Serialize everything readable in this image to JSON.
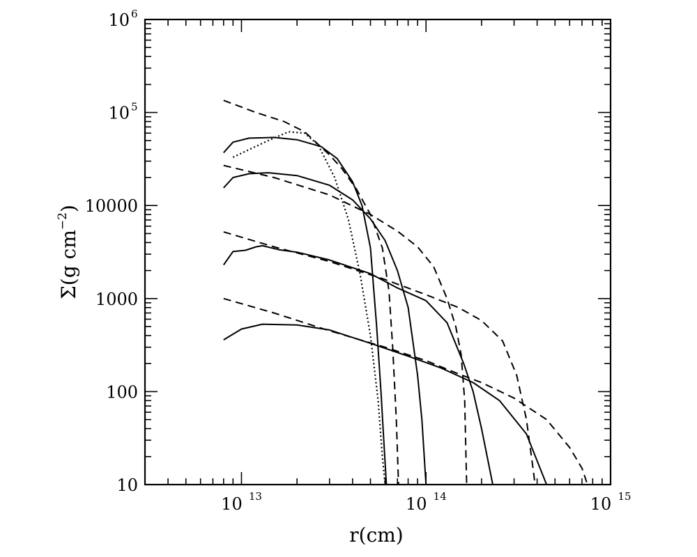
{
  "chart_data": {
    "type": "line",
    "title": "",
    "x_axis": {
      "label": "r(cm)",
      "scale": "log",
      "range": [
        3000000000000.0,
        1000000000000000.0
      ],
      "tick_values": [
        10000000000000.0,
        100000000000000.0,
        1000000000000000.0
      ],
      "tick_base": "10",
      "tick_exps": [
        "13",
        "14",
        "15"
      ]
    },
    "y_axis": {
      "label_main": "Σ(g cm",
      "label_sup": "−2",
      "label_close": ")",
      "scale": "log",
      "range": [
        10,
        1000000.0
      ],
      "ticks": [
        {
          "value": 10,
          "label": "10"
        },
        {
          "value": 100,
          "label": "100"
        },
        {
          "value": 1000,
          "label": "1000"
        },
        {
          "value": 10000,
          "label": "10000"
        },
        {
          "value": 100000,
          "label": "10",
          "exp": "5"
        },
        {
          "value": 1000000,
          "label": "10",
          "exp": "6"
        }
      ]
    },
    "grid": false,
    "legend": "none",
    "series": [
      {
        "style": "solid",
        "points": [
          [
            8000000000000.0,
            37000
          ],
          [
            9000000000000.0,
            48000
          ],
          [
            11000000000000.0,
            53000
          ],
          [
            15000000000000.0,
            54000
          ],
          [
            20000000000000.0,
            51000
          ],
          [
            27000000000000.0,
            43000
          ],
          [
            33000000000000.0,
            32000
          ],
          [
            40000000000000.0,
            18000
          ],
          [
            45000000000000.0,
            10000
          ],
          [
            50000000000000.0,
            3500
          ],
          [
            54000000000000.0,
            500
          ],
          [
            57000000000000.0,
            100
          ],
          [
            59000000000000.0,
            30
          ],
          [
            61000000000000.0,
            10
          ]
        ]
      },
      {
        "style": "solid",
        "points": [
          [
            8000000000000.0,
            15500
          ],
          [
            9000000000000.0,
            20000
          ],
          [
            11000000000000.0,
            22000
          ],
          [
            14000000000000.0,
            22500
          ],
          [
            20000000000000.0,
            21000
          ],
          [
            30000000000000.0,
            16500
          ],
          [
            40000000000000.0,
            11500
          ],
          [
            50000000000000.0,
            7200
          ],
          [
            60000000000000.0,
            4200
          ],
          [
            70000000000000.0,
            2000
          ],
          [
            80000000000000.0,
            800
          ],
          [
            90000000000000.0,
            150
          ],
          [
            95000000000000.0,
            50
          ],
          [
            100000000000000.0,
            10
          ]
        ]
      },
      {
        "style": "solid",
        "points": [
          [
            8000000000000.0,
            2300
          ],
          [
            9000000000000.0,
            3200
          ],
          [
            10500000000000.0,
            3300
          ],
          [
            12000000000000.0,
            3600
          ],
          [
            13000000000000.0,
            3700
          ],
          [
            16000000000000.0,
            3350
          ],
          [
            20000000000000.0,
            3150
          ],
          [
            30000000000000.0,
            2600
          ],
          [
            50000000000000.0,
            1850
          ],
          [
            70000000000000.0,
            1300
          ],
          [
            100000000000000.0,
            950
          ],
          [
            130000000000000.0,
            550
          ],
          [
            160000000000000.0,
            200
          ],
          [
            180000000000000.0,
            100
          ],
          [
            200000000000000.0,
            40
          ],
          [
            230000000000000.0,
            10
          ]
        ]
      },
      {
        "style": "solid",
        "points": [
          [
            8000000000000.0,
            360
          ],
          [
            10000000000000.0,
            470
          ],
          [
            13000000000000.0,
            530
          ],
          [
            20000000000000.0,
            520
          ],
          [
            30000000000000.0,
            460
          ],
          [
            50000000000000.0,
            330
          ],
          [
            80000000000000.0,
            240
          ],
          [
            120000000000000.0,
            180
          ],
          [
            180000000000000.0,
            125
          ],
          [
            250000000000000.0,
            80
          ],
          [
            350000000000000.0,
            35
          ],
          [
            450000000000000.0,
            10
          ]
        ]
      },
      {
        "style": "dashed",
        "points": [
          [
            8000000000000.0,
            135000
          ],
          [
            12000000000000.0,
            100000
          ],
          [
            17000000000000.0,
            80000
          ],
          [
            22000000000000.0,
            62000
          ],
          [
            30000000000000.0,
            35000
          ],
          [
            35000000000000.0,
            25000
          ],
          [
            42000000000000.0,
            15000
          ],
          [
            50000000000000.0,
            8000
          ],
          [
            58000000000000.0,
            3500
          ],
          [
            63000000000000.0,
            1200
          ],
          [
            66000000000000.0,
            300
          ],
          [
            69000000000000.0,
            50
          ],
          [
            71000000000000.0,
            10
          ]
        ]
      },
      {
        "style": "dashed",
        "points": [
          [
            8000000000000.0,
            27000
          ],
          [
            15000000000000.0,
            20000
          ],
          [
            30000000000000.0,
            13000
          ],
          [
            50000000000000.0,
            8000
          ],
          [
            70000000000000.0,
            5300
          ],
          [
            90000000000000.0,
            3600
          ],
          [
            110000000000000.0,
            2200
          ],
          [
            130000000000000.0,
            1000
          ],
          [
            145000000000000.0,
            500
          ],
          [
            155000000000000.0,
            250
          ],
          [
            162000000000000.0,
            80
          ],
          [
            166000000000000.0,
            10
          ]
        ]
      },
      {
        "style": "dashed",
        "points": [
          [
            8000000000000.0,
            5200
          ],
          [
            15000000000000.0,
            3600
          ],
          [
            30000000000000.0,
            2500
          ],
          [
            60000000000000.0,
            1600
          ],
          [
            100000000000000.0,
            1100
          ],
          [
            150000000000000.0,
            800
          ],
          [
            200000000000000.0,
            580
          ],
          [
            260000000000000.0,
            350
          ],
          [
            310000000000000.0,
            150
          ],
          [
            350000000000000.0,
            50
          ],
          [
            380000000000000.0,
            15
          ],
          [
            390000000000000.0,
            10
          ]
        ]
      },
      {
        "style": "dashed",
        "points": [
          [
            8000000000000.0,
            1000
          ],
          [
            15000000000000.0,
            700
          ],
          [
            30000000000000.0,
            450
          ],
          [
            60000000000000.0,
            300
          ],
          [
            100000000000000.0,
            215
          ],
          [
            150000000000000.0,
            155
          ],
          [
            200000000000000.0,
            125
          ],
          [
            300000000000000.0,
            85
          ],
          [
            450000000000000.0,
            50
          ],
          [
            600000000000000.0,
            25
          ],
          [
            700000000000000.0,
            15
          ],
          [
            750000000000000.0,
            10
          ]
        ]
      },
      {
        "style": "dotted",
        "points": [
          [
            9000000000000.0,
            33000
          ],
          [
            11000000000000.0,
            40000
          ],
          [
            14000000000000.0,
            50000
          ],
          [
            18000000000000.0,
            62000
          ],
          [
            22000000000000.0,
            60000
          ],
          [
            26000000000000.0,
            45000
          ],
          [
            32000000000000.0,
            20000
          ],
          [
            38000000000000.0,
            7000
          ],
          [
            44000000000000.0,
            1800
          ],
          [
            50000000000000.0,
            400
          ],
          [
            55000000000000.0,
            80
          ],
          [
            58000000000000.0,
            20
          ],
          [
            60000000000000.0,
            10
          ]
        ]
      }
    ]
  }
}
